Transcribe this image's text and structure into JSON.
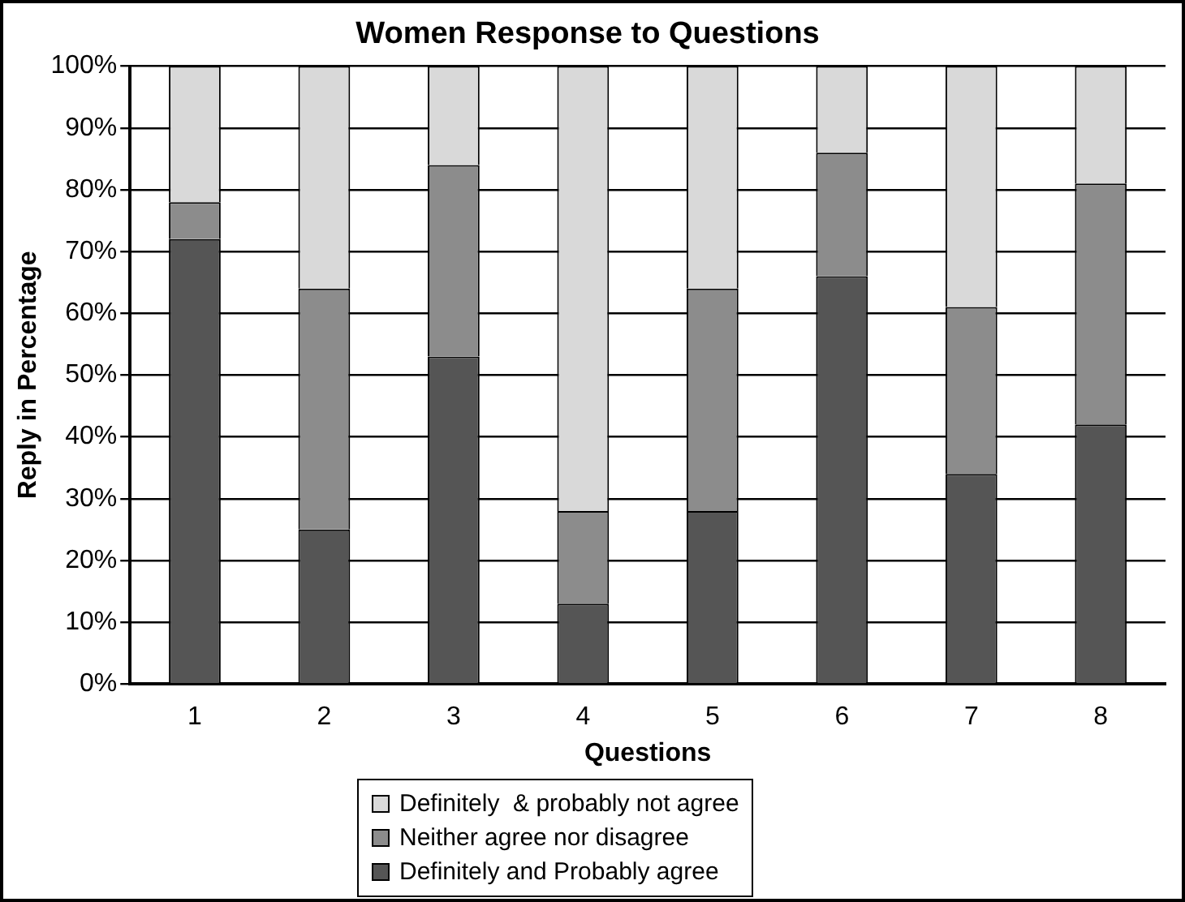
{
  "chart_data": {
    "type": "bar",
    "title": "Women Response to Questions",
    "xlabel": "Questions",
    "ylabel": "Reply in Percentage",
    "categories": [
      "1",
      "2",
      "3",
      "4",
      "5",
      "6",
      "7",
      "8"
    ],
    "stacked": true,
    "ylim": [
      0,
      100
    ],
    "yticks": [
      {
        "value": 0,
        "label": "0%"
      },
      {
        "value": 10,
        "label": "10%"
      },
      {
        "value": 20,
        "label": "20%"
      },
      {
        "value": 30,
        "label": "30%"
      },
      {
        "value": 40,
        "label": "40%"
      },
      {
        "value": 50,
        "label": "50%"
      },
      {
        "value": 60,
        "label": "60%"
      },
      {
        "value": 70,
        "label": "70%"
      },
      {
        "value": 80,
        "label": "80%"
      },
      {
        "value": 90,
        "label": "90%"
      },
      {
        "value": 100,
        "label": "100%"
      }
    ],
    "grid": "y",
    "legend": "bottom",
    "series": [
      {
        "name": "Definitely and Probably agree",
        "color": "#555555",
        "values": [
          72,
          25,
          53,
          13,
          28,
          66,
          34,
          42
        ]
      },
      {
        "name": "Neither agree nor disagree",
        "color": "#8c8c8c",
        "values": [
          6,
          39,
          31,
          15,
          36,
          20,
          27,
          39
        ]
      },
      {
        "name": "Definitely  & probably not agree",
        "color": "#d9d9d9",
        "values": [
          22,
          36,
          16,
          72,
          36,
          14,
          39,
          19
        ]
      }
    ]
  }
}
